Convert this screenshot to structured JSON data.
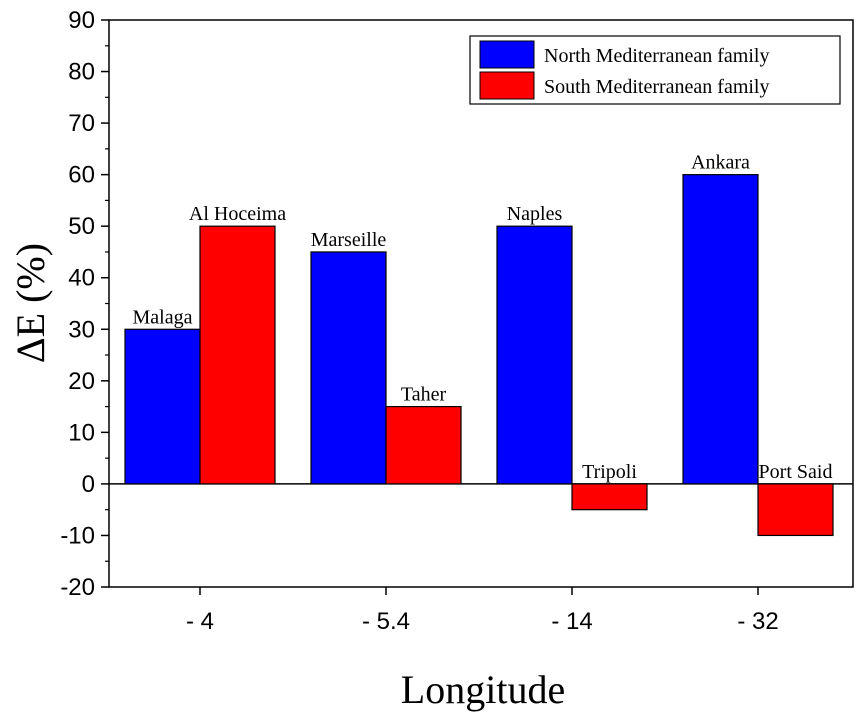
{
  "chart_data": {
    "type": "bar",
    "categories": [
      "- 4",
      "- 5.4",
      "- 14",
      "- 32"
    ],
    "series": [
      {
        "name": "North Mediterranean family",
        "color": "#0000ff",
        "values": [
          30,
          45,
          50,
          60
        ],
        "labels": [
          "Malaga",
          "Marseille",
          "Naples",
          "Ankara"
        ]
      },
      {
        "name": "South Mediterranean family",
        "color": "#ff0000",
        "values": [
          50,
          15,
          -5,
          -10
        ],
        "labels": [
          "Al Hoceima",
          "Taher",
          "Tripoli",
          "Port Said"
        ]
      }
    ],
    "xlabel": "Longitude",
    "ylabel": "ΔE (%)",
    "ylim": [
      -20,
      90
    ],
    "yticks": [
      -20,
      -10,
      0,
      10,
      20,
      30,
      40,
      50,
      60,
      70,
      80,
      90
    ],
    "grid": false,
    "legend": "top-right"
  }
}
